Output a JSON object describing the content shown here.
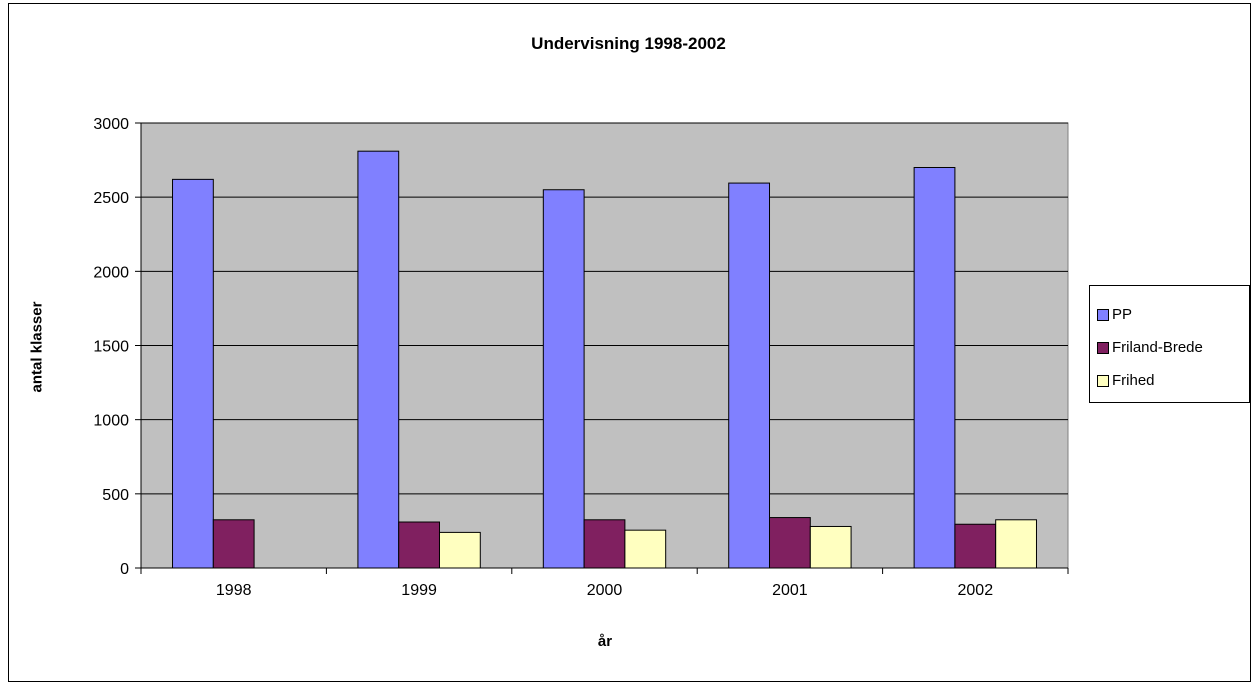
{
  "chart_data": {
    "type": "bar",
    "title": "Undervisning 1998-2002",
    "xlabel": "år",
    "ylabel": "antal klasser",
    "categories": [
      "1998",
      "1999",
      "2000",
      "2001",
      "2002"
    ],
    "ylim": [
      0,
      3000
    ],
    "yticks": [
      0,
      500,
      1000,
      1500,
      2000,
      2500,
      3000
    ],
    "grid": true,
    "legend_position": "right",
    "series": [
      {
        "name": "PP",
        "color": "#8080ff",
        "values": [
          2620,
          2810,
          2550,
          2595,
          2700
        ]
      },
      {
        "name": "Friland-Brede",
        "color": "#802060",
        "values": [
          325,
          310,
          325,
          340,
          295
        ]
      },
      {
        "name": "Frihed",
        "color": "#ffffc0",
        "values": [
          null,
          240,
          255,
          280,
          325
        ]
      }
    ]
  },
  "colors": {
    "plot_background": "#c0c0c0",
    "border": "#000000"
  }
}
